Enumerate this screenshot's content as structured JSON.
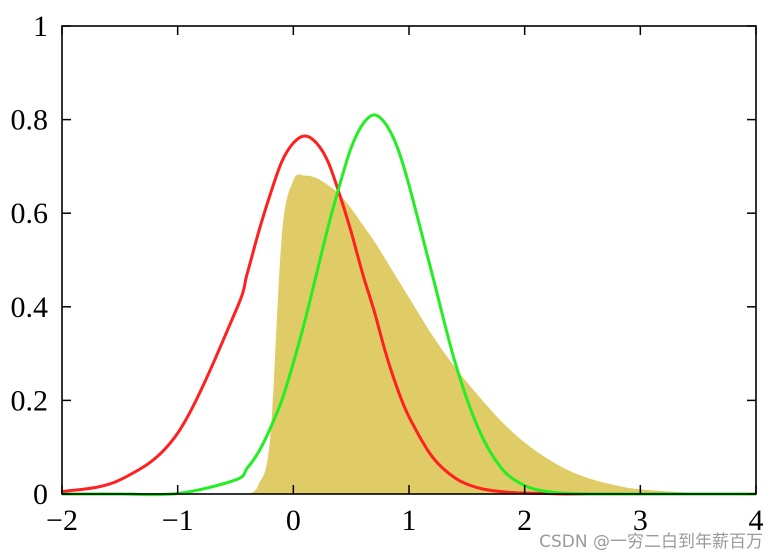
{
  "chart_data": {
    "type": "area",
    "title": "",
    "xlabel": "",
    "ylabel": "",
    "xlim": [
      -2,
      4
    ],
    "ylim": [
      0,
      1
    ],
    "grid": false,
    "x_ticks": [
      "−2",
      "−1",
      "0",
      "1",
      "2",
      "3",
      "4"
    ],
    "y_ticks": [
      "0",
      "0.2",
      "0.4",
      "0.6",
      "0.8",
      "1"
    ],
    "x": [
      -2.0,
      -1.5,
      -1.0,
      -0.5,
      -0.4,
      -0.3,
      -0.2,
      -0.1,
      0.0,
      0.1,
      0.2,
      0.3,
      0.4,
      0.5,
      0.6,
      0.7,
      0.8,
      0.9,
      1.0,
      1.2,
      1.4,
      1.6,
      1.8,
      2.0,
      2.2,
      2.4,
      2.6,
      2.8,
      3.0,
      3.5,
      4.0
    ],
    "series": [
      {
        "color": "#e0cc66",
        "style": "filled",
        "values": [
          0,
          0,
          0,
          0,
          0.0,
          0.02,
          0.12,
          0.55,
          0.67,
          0.68,
          0.675,
          0.66,
          0.64,
          0.61,
          0.575,
          0.54,
          0.5,
          0.46,
          0.42,
          0.34,
          0.27,
          0.21,
          0.155,
          0.11,
          0.075,
          0.048,
          0.03,
          0.018,
          0.01,
          0.002,
          0
        ]
      },
      {
        "color": "#ff2020",
        "style": "line",
        "values": [
          0.005,
          0.03,
          0.13,
          0.39,
          0.47,
          0.56,
          0.64,
          0.71,
          0.75,
          0.765,
          0.75,
          0.71,
          0.64,
          0.56,
          0.47,
          0.39,
          0.3,
          0.225,
          0.165,
          0.08,
          0.034,
          0.013,
          0.005,
          0.002,
          0.001,
          0,
          0,
          0,
          0,
          0,
          0
        ]
      },
      {
        "color": "#22ee22",
        "style": "line",
        "values": [
          0,
          0,
          0.001,
          0.03,
          0.055,
          0.09,
          0.14,
          0.2,
          0.28,
          0.37,
          0.47,
          0.57,
          0.66,
          0.74,
          0.79,
          0.81,
          0.79,
          0.74,
          0.66,
          0.47,
          0.28,
          0.14,
          0.055,
          0.018,
          0.005,
          0.001,
          0,
          0,
          0,
          0,
          0
        ]
      }
    ]
  },
  "watermark": "CSDN @一穷二白到年薪百万"
}
